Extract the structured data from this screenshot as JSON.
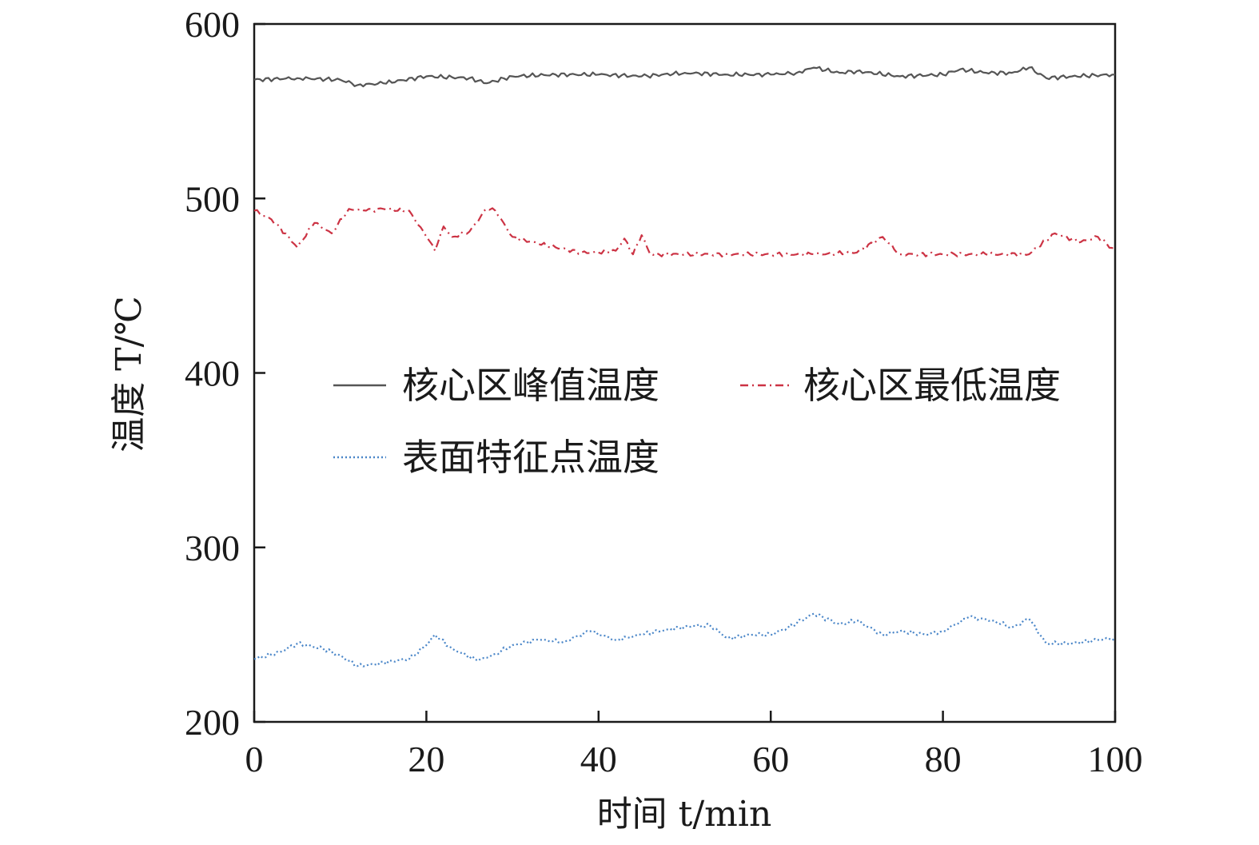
{
  "chart_data": {
    "type": "line",
    "xlabel": "时间 t/min",
    "ylabel": "温度 T/℃",
    "xlim": [
      0,
      100
    ],
    "ylim": [
      200,
      600
    ],
    "xticks": [
      "0",
      "20",
      "40",
      "60",
      "80",
      "100"
    ],
    "yticks": [
      "200",
      "300",
      "400",
      "500",
      "600"
    ],
    "grid": false,
    "legend_position": "center",
    "series": [
      {
        "name": "核心区峰值温度",
        "color": "#555555",
        "style": "solid",
        "x": [
          0,
          5,
          10,
          12,
          15,
          20,
          25,
          27,
          30,
          35,
          40,
          45,
          50,
          55,
          60,
          63,
          65,
          68,
          70,
          75,
          80,
          82,
          85,
          88,
          90,
          92,
          95,
          100
        ],
        "y": [
          568,
          569,
          568,
          565,
          566,
          570,
          569,
          566,
          570,
          571,
          571,
          570,
          572,
          571,
          571,
          572,
          575,
          572,
          573,
          570,
          571,
          574,
          572,
          572,
          575,
          569,
          570,
          571
        ]
      },
      {
        "name": "核心区最低温度",
        "color": "#cc3344",
        "style": "dash-dot",
        "x": [
          0,
          2,
          4,
          5,
          7,
          9,
          11,
          13,
          15,
          18,
          20,
          21,
          22,
          23,
          25,
          27,
          28,
          30,
          33,
          35,
          38,
          40,
          42,
          43,
          44,
          45,
          46,
          50,
          55,
          60,
          65,
          70,
          73,
          75,
          80,
          85,
          90,
          93,
          96,
          98,
          100
        ],
        "y": [
          493,
          488,
          478,
          472,
          486,
          480,
          494,
          493,
          494,
          493,
          478,
          470,
          484,
          478,
          481,
          494,
          493,
          478,
          474,
          472,
          469,
          469,
          470,
          477,
          468,
          479,
          468,
          468,
          468,
          468,
          468,
          469,
          478,
          468,
          468,
          468,
          468,
          480,
          475,
          478,
          470
        ]
      },
      {
        "name": "表面特征点温度",
        "color": "#4a86c8",
        "style": "dotted",
        "x": [
          0,
          3,
          5,
          8,
          10,
          12,
          14,
          16,
          18,
          20,
          21,
          23,
          26,
          28,
          30,
          33,
          36,
          39,
          42,
          45,
          48,
          51,
          53,
          55,
          58,
          60,
          62,
          65,
          68,
          70,
          73,
          75,
          78,
          80,
          83,
          86,
          88,
          90,
          92,
          95,
          98,
          100
        ],
        "y": [
          236,
          240,
          245,
          242,
          238,
          232,
          233,
          235,
          236,
          244,
          250,
          242,
          235,
          239,
          244,
          247,
          246,
          252,
          247,
          250,
          253,
          255,
          255,
          248,
          250,
          250,
          254,
          262,
          256,
          258,
          250,
          252,
          250,
          252,
          260,
          258,
          254,
          259,
          245,
          245,
          247,
          248
        ]
      }
    ]
  }
}
